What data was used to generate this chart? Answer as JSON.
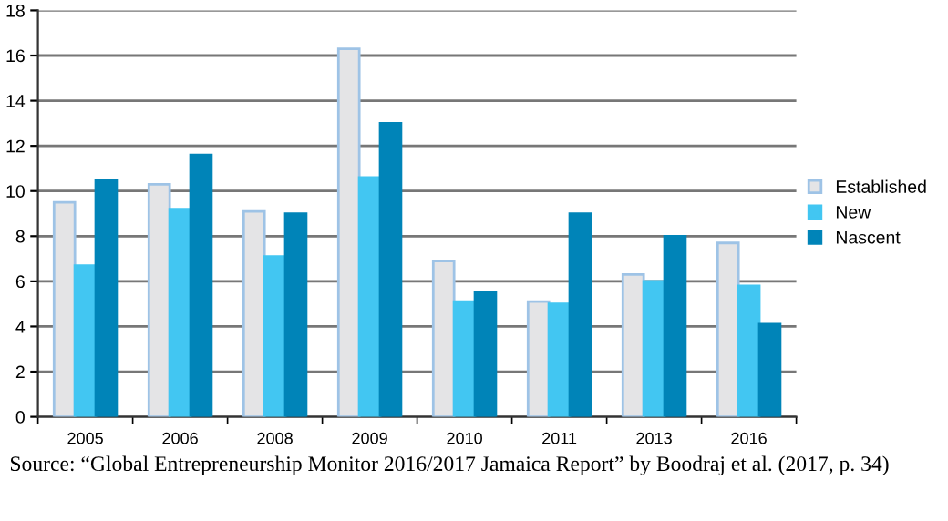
{
  "chart_data": {
    "type": "bar",
    "categories": [
      "2005",
      "2006",
      "2008",
      "2009",
      "2010",
      "2011",
      "2013",
      "2016"
    ],
    "series": [
      {
        "name": "Established",
        "color": "#e4e4e6",
        "values": [
          9.5,
          10.3,
          9.1,
          16.3,
          6.9,
          5.1,
          6.3,
          7.7
        ]
      },
      {
        "name": "New",
        "color": "#42c6f2",
        "values": [
          6.7,
          9.2,
          7.1,
          10.6,
          5.1,
          5.0,
          6.0,
          5.8
        ]
      },
      {
        "name": "Nascent",
        "color": "#0084b8",
        "values": [
          10.5,
          11.6,
          9.0,
          13.0,
          5.5,
          9.0,
          8.0,
          4.1
        ]
      }
    ],
    "ylim": [
      0,
      18
    ],
    "yticks": [
      0,
      2,
      4,
      6,
      8,
      10,
      12,
      14,
      16,
      18
    ],
    "grid": "y",
    "legend": "right",
    "annotations": [
      "Source: “Global Entrepreneurship Monitor 2016/2017 Jamaica Report” by Boodraj et al. (2017, p. 34)"
    ]
  }
}
